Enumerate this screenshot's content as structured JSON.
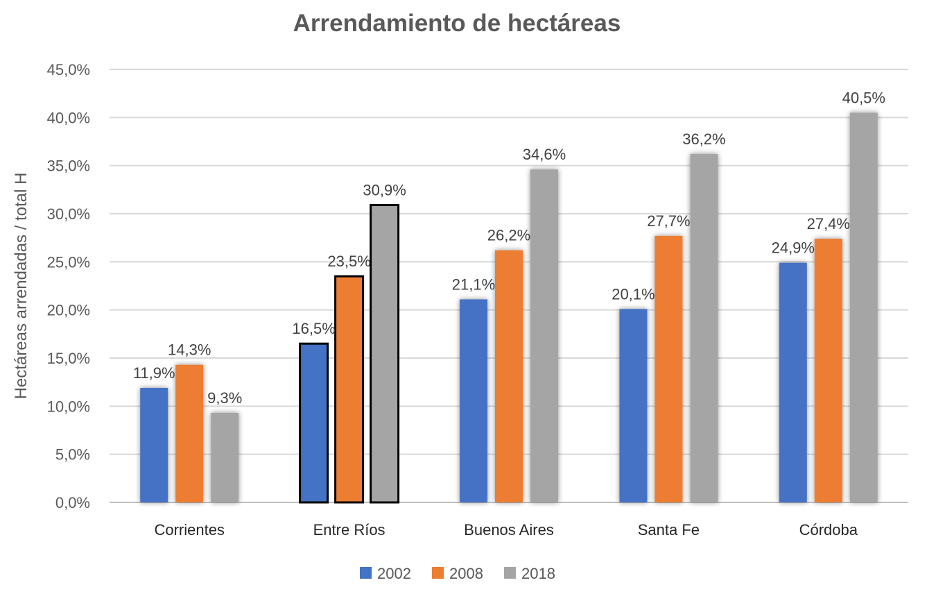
{
  "chart_data": {
    "type": "bar",
    "title": "Arrendamiento de hectáreas",
    "xlabel": "",
    "ylabel": "Hectáreas arrendadas / total H",
    "categories": [
      "Corrientes",
      "Entre Ríos",
      "Buenos Aires",
      "Santa Fe",
      "Córdoba"
    ],
    "series": [
      {
        "name": "2002",
        "color": "#4472C4",
        "values": [
          11.9,
          16.5,
          21.1,
          20.1,
          24.9
        ],
        "labels": [
          "11,9%",
          "16,5%",
          "21,1%",
          "20,1%",
          "24,9%"
        ]
      },
      {
        "name": "2008",
        "color": "#ED7D31",
        "values": [
          14.3,
          23.5,
          26.2,
          27.7,
          27.4
        ],
        "labels": [
          "14,3%",
          "23,5%",
          "26,2%",
          "27,7%",
          "27,4%"
        ]
      },
      {
        "name": "2018",
        "color": "#A5A5A5",
        "values": [
          9.3,
          30.9,
          34.6,
          36.2,
          40.5
        ],
        "labels": [
          "9,3%",
          "30,9%",
          "34,6%",
          "36,2%",
          "40,5%"
        ]
      }
    ],
    "ylim": [
      0,
      45
    ],
    "yticks": [
      "0,0%",
      "5,0%",
      "10,0%",
      "15,0%",
      "20,0%",
      "25,0%",
      "30,0%",
      "35,0%",
      "40,0%",
      "45,0%"
    ],
    "grid": true,
    "legend": "bottom",
    "highlighted_category": "Entre Ríos"
  }
}
